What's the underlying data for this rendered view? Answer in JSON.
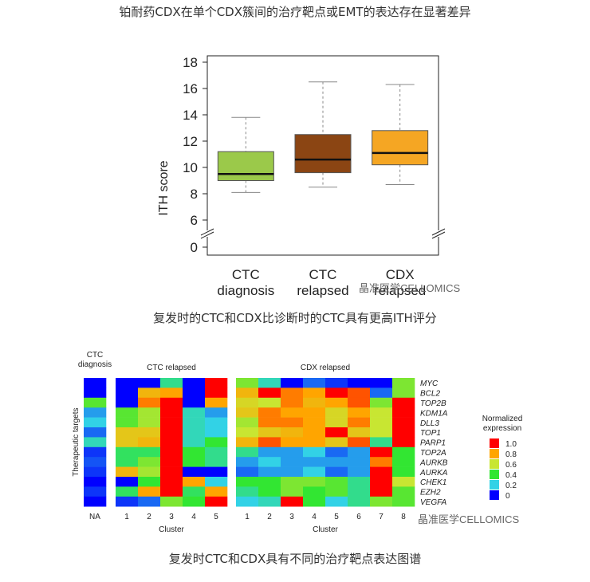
{
  "captions": {
    "top": "铂耐药CDX在单个CDX簇间的治疗靶点或EMT的表达存在显著差异",
    "middle": "复发时的CTC和CDX比诊断时的CTC具有更高ITH评分",
    "bottom": "复发时CTC和CDX具有不同的治疗靶点表达图谱"
  },
  "watermarks": {
    "first": "晶准医学CELLOMICS",
    "second": "晶准医学CELLOMICS"
  },
  "chart_data": [
    {
      "type": "box",
      "ylabel": "ITH score",
      "yticks": [
        0,
        6,
        8,
        10,
        12,
        14,
        16,
        18
      ],
      "ylim": [
        0,
        18
      ],
      "axis_break": true,
      "groups": [
        {
          "label_line1": "CTC",
          "label_line2": "diagnosis",
          "color": "#9bc94a",
          "whisker_low": 8.1,
          "q1": 9.0,
          "median": 9.5,
          "q3": 11.2,
          "whisker_high": 13.8
        },
        {
          "label_line1": "CTC",
          "label_line2": "relapsed",
          "color": "#8b4513",
          "whisker_low": 8.5,
          "q1": 9.6,
          "median": 10.6,
          "q3": 12.5,
          "whisker_high": 16.5
        },
        {
          "label_line1": "CDX",
          "label_line2": "relapsed",
          "color": "#f5a623",
          "whisker_low": 8.7,
          "q1": 10.2,
          "median": 11.1,
          "q3": 12.8,
          "whisker_high": 16.3
        }
      ]
    },
    {
      "type": "heatmap",
      "ylabel": "Therapeutic targets",
      "targets": [
        "MYC",
        "BCL2",
        "TOP2B",
        "KDM1A",
        "DLL3",
        "TOP1",
        "PARP1",
        "TOP2A",
        "AURKB",
        "AURKA",
        "CHEK1",
        "EZH2",
        "VEGFA"
      ],
      "panels": [
        {
          "title_line1": "CTC",
          "title_line2": "diagnosis",
          "clusters": [
            "NA"
          ],
          "values": [
            [
              0.0
            ],
            [
              0.0
            ],
            [
              0.45
            ],
            [
              0.15
            ],
            [
              0.2
            ],
            [
              0.1
            ],
            [
              0.25
            ],
            [
              0.05
            ],
            [
              0.08
            ],
            [
              0.05
            ],
            [
              0.0
            ],
            [
              0.05
            ],
            [
              0.0
            ]
          ]
        },
        {
          "title_line1": "CTC relapsed",
          "title_line2": "",
          "clusters": [
            "1",
            "2",
            "3",
            "4",
            "5"
          ],
          "values": [
            [
              0.0,
              0.0,
              0.3,
              0.0,
              1.0
            ],
            [
              0.0,
              0.75,
              0.8,
              0.0,
              1.0
            ],
            [
              0.0,
              0.85,
              1.0,
              0.0,
              0.8
            ],
            [
              0.45,
              0.55,
              1.0,
              0.25,
              0.15
            ],
            [
              0.45,
              0.55,
              1.0,
              0.25,
              0.2
            ],
            [
              0.7,
              0.7,
              1.0,
              0.25,
              0.2
            ],
            [
              0.7,
              0.75,
              1.0,
              0.25,
              0.4
            ],
            [
              0.35,
              0.35,
              1.0,
              0.4,
              0.3
            ],
            [
              0.35,
              0.5,
              1.0,
              0.4,
              0.3
            ],
            [
              0.75,
              0.55,
              1.0,
              0.0,
              0.0
            ],
            [
              0.0,
              0.4,
              1.0,
              0.8,
              0.2
            ],
            [
              0.35,
              0.8,
              1.0,
              0.35,
              0.8
            ],
            [
              0.05,
              0.1,
              0.5,
              0.4,
              1.0
            ]
          ]
        },
        {
          "title_line1": "CDX relapsed",
          "title_line2": "",
          "clusters": [
            "1",
            "2",
            "3",
            "4",
            "5",
            "6",
            "7",
            "8"
          ],
          "values": [
            [
              0.5,
              0.25,
              0.0,
              0.1,
              0.05,
              0.0,
              0.0,
              0.5
            ],
            [
              0.75,
              1.0,
              0.85,
              0.8,
              1.0,
              0.9,
              0.1,
              0.5
            ],
            [
              0.65,
              0.6,
              0.85,
              0.75,
              0.8,
              0.9,
              0.5,
              1.0
            ],
            [
              0.7,
              0.85,
              0.8,
              0.8,
              0.65,
              0.8,
              0.6,
              1.0
            ],
            [
              0.55,
              0.85,
              0.85,
              0.8,
              0.65,
              0.85,
              0.6,
              1.0
            ],
            [
              0.6,
              0.7,
              0.75,
              0.8,
              1.0,
              0.7,
              0.6,
              1.0
            ],
            [
              0.75,
              0.9,
              0.8,
              0.8,
              0.7,
              0.9,
              0.3,
              1.0
            ],
            [
              0.3,
              0.15,
              0.15,
              0.2,
              0.1,
              0.15,
              1.0,
              0.4
            ],
            [
              0.15,
              0.2,
              0.15,
              0.15,
              0.15,
              0.15,
              0.85,
              0.4
            ],
            [
              0.1,
              0.15,
              0.15,
              0.2,
              0.1,
              0.15,
              1.0,
              0.4
            ],
            [
              0.4,
              0.4,
              0.5,
              0.5,
              0.45,
              0.3,
              1.0,
              0.6
            ],
            [
              0.3,
              0.4,
              0.5,
              0.4,
              0.45,
              0.3,
              1.0,
              0.45
            ],
            [
              0.2,
              0.25,
              1.0,
              0.4,
              0.2,
              0.3,
              0.5,
              0.45
            ]
          ]
        }
      ],
      "xlabel": "Cluster",
      "legend": {
        "title_line1": "Normalized",
        "title_line2": "expression",
        "values": [
          "1.0",
          "0.8",
          "0.6",
          "0.4",
          "0.2",
          "0"
        ],
        "colors": [
          "#ff0000",
          "#ffa500",
          "#c8e632",
          "#32e632",
          "#32d2e6",
          "#0000ff"
        ]
      }
    }
  ]
}
